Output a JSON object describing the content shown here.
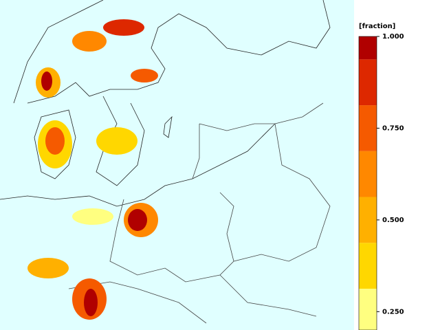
{
  "legend": {
    "title": "[fraction]",
    "lim": [
      0.2,
      1.0
    ],
    "ticks": [
      {
        "value": 1,
        "label": "1.000"
      },
      {
        "value": 0.75,
        "label": "0.750"
      },
      {
        "value": 0.5,
        "label": "0.500"
      },
      {
        "value": 0.25,
        "label": "0.250"
      }
    ],
    "bands": [
      {
        "from": 0.2,
        "to": 0.3125,
        "color": "#ffff80"
      },
      {
        "from": 0.3125,
        "to": 0.4375,
        "color": "#ffd700"
      },
      {
        "from": 0.4375,
        "to": 0.5625,
        "color": "#ffb000"
      },
      {
        "from": 0.5625,
        "to": 0.6875,
        "color": "#ff8800"
      },
      {
        "from": 0.6875,
        "to": 0.8125,
        "color": "#f55a00"
      },
      {
        "from": 0.8125,
        "to": 0.9375,
        "color": "#dd2800"
      },
      {
        "from": 0.9375,
        "to": 1.0,
        "color": "#b00000"
      }
    ]
  }
}
